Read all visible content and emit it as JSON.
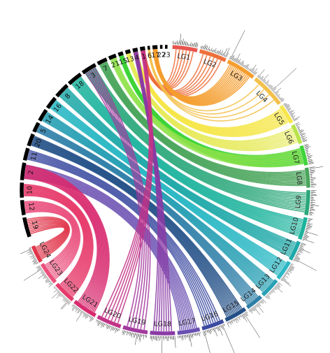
{
  "diagram": {
    "lg_segments": [
      {
        "label": "LG1",
        "color": "#e8554e",
        "start": 3,
        "end": 13
      },
      {
        "label": "LG2",
        "color": "#ef6f3a",
        "start": 14,
        "end": 25
      },
      {
        "label": "LG3",
        "color": "#f59e2e",
        "start": 26,
        "end": 38
      },
      {
        "label": "LG4",
        "color": "#f3c04a",
        "start": 39,
        "end": 53
      },
      {
        "label": "LG5",
        "color": "#f6e64a",
        "start": 54,
        "end": 62
      },
      {
        "label": "LG6",
        "color": "#b7e34b",
        "start": 63,
        "end": 71
      },
      {
        "label": "LG7",
        "color": "#3ed43a",
        "start": 72,
        "end": 80
      },
      {
        "label": "LG8",
        "color": "#49a55b",
        "start": 81,
        "end": 89
      },
      {
        "label": "LG9",
        "color": "#2aa77a",
        "start": 90,
        "end": 100
      },
      {
        "label": "LG10",
        "color": "#1bb39c",
        "start": 101,
        "end": 110
      },
      {
        "label": "LG11",
        "color": "#1fa8a8",
        "start": 111,
        "end": 119
      },
      {
        "label": "LG12",
        "color": "#2bb8c4",
        "start": 120,
        "end": 128
      },
      {
        "label": "LG13",
        "color": "#28a0b4",
        "start": 129,
        "end": 137
      },
      {
        "label": "LG14",
        "color": "#2f7fa8",
        "start": 138,
        "end": 145
      },
      {
        "label": "LG15",
        "color": "#214f86",
        "start": 146,
        "end": 155
      },
      {
        "label": "LG16",
        "color": "#3b4aa0",
        "start": 156,
        "end": 165
      },
      {
        "label": "LG17",
        "color": "#6a4fb2",
        "start": 166,
        "end": 175
      },
      {
        "label": "LG18",
        "color": "#8a3aa5",
        "start": 176,
        "end": 186
      },
      {
        "label": "LG19",
        "color": "#a33a9e",
        "start": 187,
        "end": 197
      },
      {
        "label": "LG20",
        "color": "#c23387",
        "start": 198,
        "end": 208
      },
      {
        "label": "LG21",
        "color": "#d82a6f",
        "start": 209,
        "end": 219
      },
      {
        "label": "LG22",
        "color": "#e63a6a",
        "start": 220,
        "end": 229
      },
      {
        "label": "LG23",
        "color": "#ea4f7c",
        "start": 230,
        "end": 239
      },
      {
        "label": "LG24",
        "color": "#e0354a",
        "start": 240,
        "end": 247
      }
    ],
    "ref_segments": [
      {
        "label": "19",
        "start": 251,
        "end": 259
      },
      {
        "label": "12",
        "start": 260,
        "end": 266
      },
      {
        "label": "10",
        "start": 267,
        "end": 273
      },
      {
        "label": "2",
        "start": 274,
        "end": 281
      },
      {
        "label": "11",
        "start": 282,
        "end": 287
      },
      {
        "label": "20",
        "start": 288,
        "end": 293
      },
      {
        "label": "5",
        "start": 294,
        "end": 298
      },
      {
        "label": "14",
        "start": 299,
        "end": 304
      },
      {
        "label": "16",
        "start": 305,
        "end": 310
      },
      {
        "label": "8",
        "start": 311,
        "end": 317
      },
      {
        "label": "18",
        "start": 318,
        "end": 324
      },
      {
        "label": "3",
        "start": 325,
        "end": 331
      },
      {
        "label": "7",
        "start": 332,
        "end": 336
      },
      {
        "label": "21",
        "start": 337,
        "end": 340
      },
      {
        "label": "15",
        "start": 341,
        "end": 343
      },
      {
        "label": "13",
        "start": 344,
        "end": 346
      },
      {
        "label": "4",
        "start": 347,
        "end": 349
      },
      {
        "label": "1",
        "start": 350,
        "end": 352
      },
      {
        "label": "6",
        "start": 353,
        "end": 354
      },
      {
        "label": "17",
        "start": 355,
        "end": 357
      },
      {
        "label": "22",
        "start": 358,
        "end": 359
      },
      {
        "label": "23",
        "start": 360,
        "end": 361
      }
    ],
    "links": [
      {
        "from": "LG1",
        "to": "1",
        "color": "#ef6f3a",
        "count": 6
      },
      {
        "from": "LG2",
        "to": "1",
        "color": "#ef6f3a",
        "count": 6
      },
      {
        "from": "LG3",
        "to": "17",
        "color": "#f59e2e",
        "count": 14
      },
      {
        "from": "LG4",
        "to": "6",
        "color": "#f3c04a",
        "count": 4
      },
      {
        "from": "LG5",
        "to": "4",
        "color": "#f6e64a",
        "count": 12
      },
      {
        "from": "LG6",
        "to": "13",
        "color": "#e6ea5a",
        "count": 10
      },
      {
        "from": "LG7",
        "to": "15",
        "color": "#3ed43a",
        "count": 14
      },
      {
        "from": "LG7",
        "to": "21",
        "color": "#8fe24a",
        "count": 8
      },
      {
        "from": "LG8",
        "to": "7",
        "color": "#49a55b",
        "count": 12
      },
      {
        "from": "LG9",
        "to": "3",
        "color": "#2aa77a",
        "count": 12
      },
      {
        "from": "LG10",
        "to": "18",
        "color": "#1bb39c",
        "count": 12
      },
      {
        "from": "LG11",
        "to": "8",
        "color": "#1fa8a8",
        "count": 12
      },
      {
        "from": "LG12",
        "to": "16",
        "color": "#2bb8c4",
        "count": 12
      },
      {
        "from": "LG13",
        "to": "14",
        "color": "#28a0b4",
        "count": 12
      },
      {
        "from": "LG14",
        "to": "5",
        "color": "#2f7fa8",
        "count": 10
      },
      {
        "from": "LG15",
        "to": "20",
        "color": "#214f86",
        "count": 12
      },
      {
        "from": "LG16",
        "to": "11",
        "color": "#3b4aa0",
        "count": 8
      },
      {
        "from": "LG17",
        "to": "2",
        "color": "#6a4fb2",
        "count": 10
      },
      {
        "from": "LG18",
        "to": "4",
        "color": "#8a3aa5",
        "count": 8
      },
      {
        "from": "LG19",
        "to": "3",
        "color": "#a33a9e",
        "count": 6
      },
      {
        "from": "LG20",
        "to": "1",
        "color": "#c23387",
        "count": 6
      },
      {
        "from": "LG21",
        "to": "2",
        "color": "#d82a6f",
        "count": 14
      },
      {
        "from": "LG22",
        "to": "10",
        "color": "#e63a6a",
        "count": 14
      },
      {
        "from": "LG23",
        "to": "12",
        "color": "#ea4f7c",
        "count": 12
      },
      {
        "from": "LG24",
        "to": "19",
        "color": "#e0354a",
        "count": 10
      }
    ]
  }
}
